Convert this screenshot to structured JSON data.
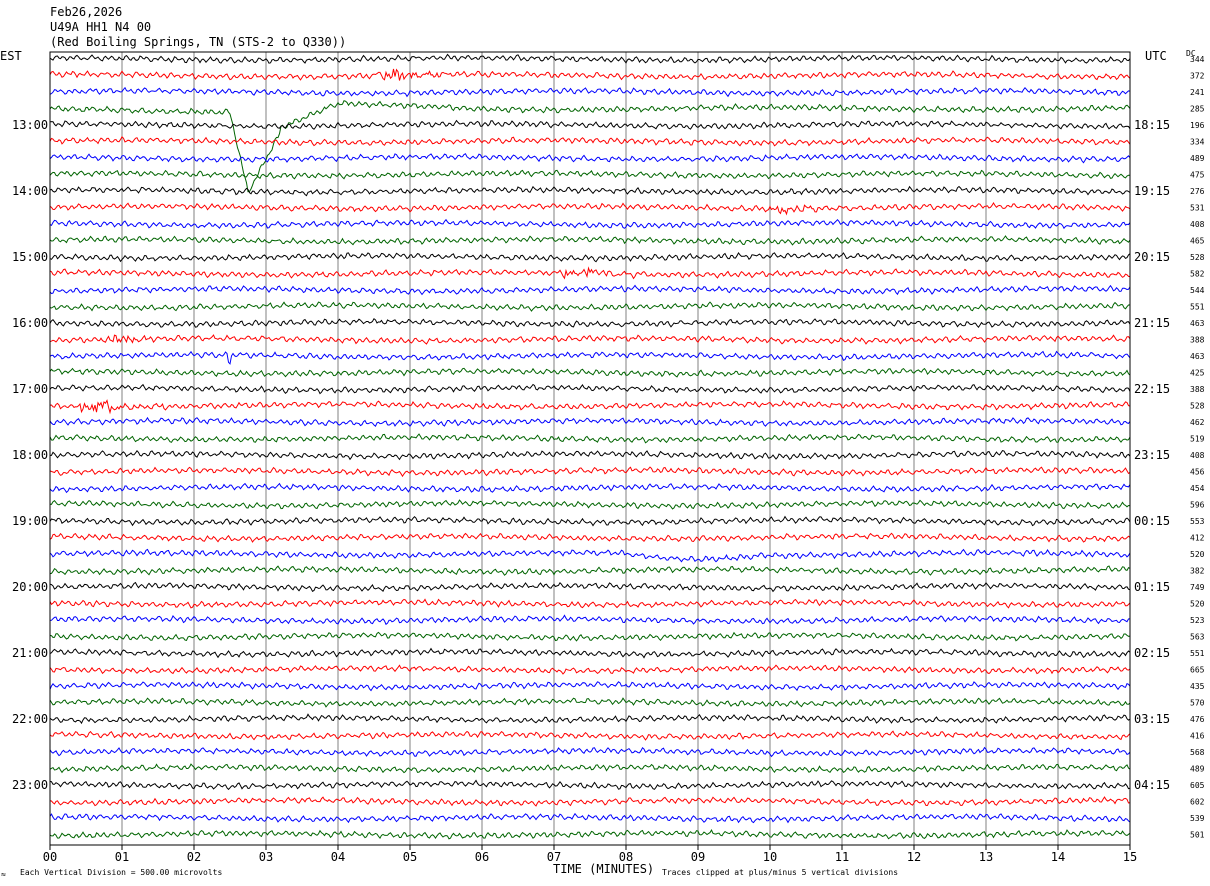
{
  "header": {
    "date": "Feb26,2026",
    "channel": "U49A HH1 N4 00",
    "location": "(Red Boiling Springs, TN (STS-2 to Q330))"
  },
  "left_zone": "EST",
  "right_zone": "UTC",
  "dc_label": "DC",
  "footer": {
    "scale_note": "Each Vertical Division =  500.00 microvolts",
    "xlabel": "TIME (MINUTES)",
    "clip_note": "Traces clipped at plus/minus 5 vertical divisions",
    "corner_mark": "≈"
  },
  "colors": {
    "trace_cycle": [
      "#000000",
      "#ff0000",
      "#0000ff",
      "#006400"
    ],
    "gridline": "#808080"
  },
  "chart_data": {
    "type": "line",
    "title": "",
    "xlabel": "TIME (MINUTES)",
    "xlim": [
      0,
      15
    ],
    "x_ticks": [
      "00",
      "01",
      "02",
      "03",
      "04",
      "05",
      "06",
      "07",
      "08",
      "09",
      "10",
      "11",
      "12",
      "13",
      "14",
      "15"
    ],
    "vertical_grid": true,
    "rows_per_hour": 4,
    "row_count": 48,
    "left_hour_labels": [
      "13:00",
      "14:00",
      "15:00",
      "16:00",
      "17:00",
      "18:00",
      "19:00",
      "20:00",
      "21:00",
      "22:00",
      "23:00"
    ],
    "right_hour_labels": [
      "18:15",
      "19:15",
      "20:15",
      "21:15",
      "22:15",
      "23:15",
      "00:15",
      "01:15",
      "02:15",
      "03:15",
      "04:15"
    ],
    "dc_offsets": [
      344,
      372,
      241,
      285,
      196,
      334,
      489,
      475,
      276,
      531,
      408,
      465,
      528,
      582,
      544,
      551,
      463,
      388,
      463,
      425,
      388,
      528,
      462,
      519,
      408,
      456,
      454,
      596,
      553,
      412,
      520,
      382,
      749,
      520,
      523,
      563,
      551,
      665,
      435,
      570,
      476,
      416,
      568,
      489,
      605,
      602,
      539,
      501
    ],
    "events": [
      {
        "row": 1,
        "t_min": 4.8,
        "amplitude": "large"
      },
      {
        "row": 3,
        "t_min": 1.5,
        "amplitude": "offset-excursion"
      },
      {
        "row": 9,
        "t_min": 10.2,
        "amplitude": "medium"
      },
      {
        "row": 13,
        "t_min": 7.4,
        "amplitude": "large"
      },
      {
        "row": 17,
        "t_min": 1.0,
        "amplitude": "medium"
      },
      {
        "row": 18,
        "t_min": 2.5,
        "amplitude": "spike"
      },
      {
        "row": 21,
        "t_min": 0.7,
        "amplitude": "large"
      },
      {
        "row": 30,
        "t_min": 8.4,
        "amplitude": "long-period"
      }
    ]
  }
}
